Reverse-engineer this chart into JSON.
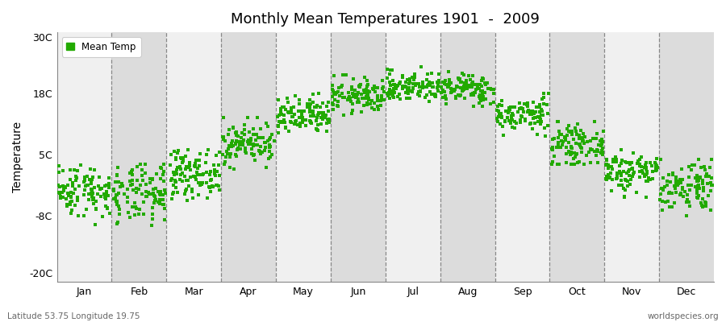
{
  "title": "Monthly Mean Temperatures 1901  -  2009",
  "ylabel": "Temperature",
  "bottom_left_text": "Latitude 53.75 Longitude 19.75",
  "bottom_right_text": "worldspecies.org",
  "legend_label": "Mean Temp",
  "dot_color": "#22AA00",
  "bg_color_light": "#F0F0F0",
  "bg_color_dark": "#DCDCDC",
  "yticks": [
    -20,
    -8,
    5,
    18,
    30
  ],
  "ytick_labels": [
    "-20C",
    "-8C",
    "5C",
    "18C",
    "30C"
  ],
  "months": [
    "Jan",
    "Feb",
    "Mar",
    "Apr",
    "May",
    "Jun",
    "Jul",
    "Aug",
    "Sep",
    "Oct",
    "Nov",
    "Dec"
  ],
  "month_mean_temps": [
    -2.5,
    -3.5,
    1.0,
    7.5,
    13.0,
    17.5,
    19.5,
    19.0,
    13.5,
    7.0,
    1.5,
    -1.5
  ],
  "month_std_temps": [
    2.8,
    3.2,
    2.5,
    2.2,
    2.0,
    1.8,
    1.6,
    1.6,
    1.8,
    2.0,
    2.2,
    2.8
  ],
  "month_min_temps": [
    -12,
    -14,
    -5,
    2,
    8,
    13,
    15,
    15,
    9,
    3,
    -4,
    -8
  ],
  "month_max_temps": [
    3,
    3,
    6,
    13,
    18,
    22,
    24,
    23,
    18,
    12,
    6,
    4
  ],
  "n_years": 109,
  "ylim": [
    -22,
    31
  ],
  "figsize": [
    9.0,
    4.0
  ],
  "dpi": 100
}
